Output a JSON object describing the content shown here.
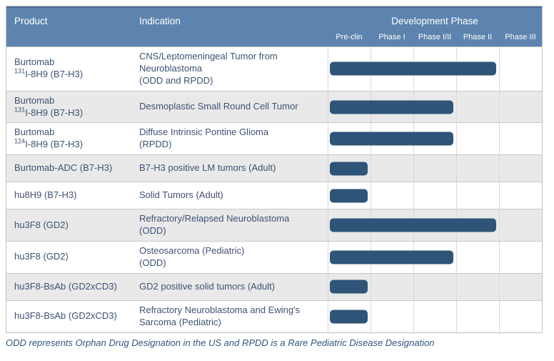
{
  "header": {
    "product": "Product",
    "indication": "Indication",
    "development_phase": "Development Phase"
  },
  "phases": [
    "Pre-clin",
    "Phase I",
    "Phase I/II",
    "Phase II",
    "Phase III"
  ],
  "rows": [
    {
      "product": {
        "line1": "Burtomab",
        "sup": "131",
        "line2": "I-8H9 (B7-H3)"
      },
      "indication_lines": [
        "CNS/Leptomeningeal Tumor from",
        "Neuroblastoma",
        "(ODD and RPDD)"
      ],
      "phase_span": 4,
      "phase_reached": "Phase II"
    },
    {
      "product": {
        "line1": "Burtomab",
        "sup": "131",
        "line2": "I-8H9 (B7-H3)"
      },
      "indication_lines": [
        "Desmoplastic Small Round Cell Tumor"
      ],
      "phase_span": 3,
      "phase_reached": "Phase I/II"
    },
    {
      "product": {
        "line1": "Burtomab",
        "sup": "124",
        "line2": "I-8H9 (B7-H3)"
      },
      "indication_lines": [
        "Diffuse Intrinsic Pontine Glioma",
        "(RPDD)"
      ],
      "phase_span": 3,
      "phase_reached": "Phase I/II"
    },
    {
      "product": {
        "line1": "Burtomab-ADC (B7-H3)"
      },
      "indication_lines": [
        "B7-H3 positive LM tumors (Adult)"
      ],
      "phase_span": 1,
      "phase_reached": "Pre-clin"
    },
    {
      "product": {
        "line1": "hu8H9 (B7-H3)"
      },
      "indication_lines": [
        "Solid Tumors (Adult)"
      ],
      "phase_span": 1,
      "phase_reached": "Pre-clin"
    },
    {
      "product": {
        "line1": "hu3F8 (GD2)"
      },
      "indication_lines": [
        "Refractory/Relapsed Neuroblastoma",
        "(ODD)"
      ],
      "phase_span": 4,
      "phase_reached": "Phase II"
    },
    {
      "product": {
        "line1": "hu3F8 (GD2)"
      },
      "indication_lines": [
        "Osteosarcoma (Pediatric)",
        "(ODD)"
      ],
      "phase_span": 3,
      "phase_reached": "Phase I/II"
    },
    {
      "product": {
        "line1": "hu3F8-BsAb (GD2xCD3)"
      },
      "indication_lines": [
        "GD2 positive solid tumors (Adult)"
      ],
      "phase_span": 1,
      "phase_reached": "Pre-clin"
    },
    {
      "product": {
        "line1": "hu3F8-BsAb (GD2xCD3)"
      },
      "indication_lines": [
        "Refractory Neuroblastoma and Ewing's",
        "Sarcoma (Pediatric)"
      ],
      "phase_span": 1,
      "phase_reached": "Pre-clin"
    }
  ],
  "footnote": "ODD represents Orphan Drug Designation in the US and RPDD is a Rare Pediatric Disease Designation",
  "colors": {
    "header_bg": "#5d84ae",
    "header_text": "#ffffff",
    "bar": "#2e5578",
    "body_text": "#3e5273",
    "stripe_bg": "#e9e9e9",
    "row_border": "#c9c9c9",
    "col_border": "#d9d9d9",
    "footnote_text": "#31567e"
  },
  "chart_data": {
    "type": "bar",
    "title": "Development Phase",
    "orientation": "horizontal",
    "x_axis_phases": [
      "Pre-clin",
      "Phase I",
      "Phase I/II",
      "Phase II",
      "Phase III"
    ],
    "categories": [
      "Burtomab 131I-8H9 (B7-H3) — CNS/Leptomeningeal Tumor from Neuroblastoma (ODD and RPDD)",
      "Burtomab 131I-8H9 (B7-H3) — Desmoplastic Small Round Cell Tumor",
      "Burtomab 124I-8H9 (B7-H3) — Diffuse Intrinsic Pontine Glioma (RPDD)",
      "Burtomab-ADC (B7-H3) — B7-H3 positive LM tumors (Adult)",
      "hu8H9 (B7-H3) — Solid Tumors (Adult)",
      "hu3F8 (GD2) — Refractory/Relapsed Neuroblastoma (ODD)",
      "hu3F8 (GD2) — Osteosarcoma (Pediatric) (ODD)",
      "hu3F8-BsAb (GD2xCD3) — GD2 positive solid tumors (Adult)",
      "hu3F8-BsAb (GD2xCD3) — Refractory Neuroblastoma and Ewing's Sarcoma (Pediatric)"
    ],
    "values": [
      4,
      3,
      3,
      1,
      1,
      4,
      3,
      1,
      1
    ],
    "value_scale": "number of phase columns reached, out of 5 (Pre-clin=1 … Phase III=5)",
    "phase_reached": [
      "Phase II",
      "Phase I/II",
      "Phase I/II",
      "Pre-clin",
      "Pre-clin",
      "Phase II",
      "Phase I/II",
      "Pre-clin",
      "Pre-clin"
    ],
    "xlabel": "Development Phase",
    "ylabel": "Product / Indication",
    "grid": true,
    "legend": false
  }
}
